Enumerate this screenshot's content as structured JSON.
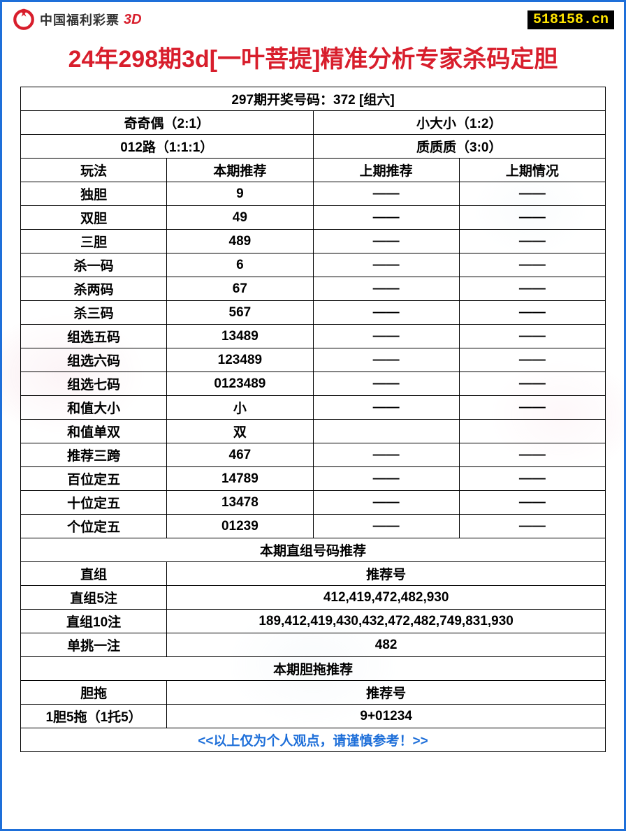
{
  "header": {
    "logo_text": "中国福利彩票",
    "logo_3d": "3D",
    "logo_color": "#d81e2c",
    "site_badge": "518158.cn"
  },
  "title": {
    "text": "24年298期3d[一叶菩提]精准分析专家杀码定胆",
    "color": "#d81e2c"
  },
  "last_draw": "297期开奖号码：372 [组六]",
  "summary": {
    "row1": {
      "left": "奇奇偶（2:1）",
      "right": "小大小（1:2）"
    },
    "row2": {
      "left": "012路（1:1:1）",
      "right": "质质质（3:0）"
    }
  },
  "columns": {
    "c1": "玩法",
    "c2": "本期推荐",
    "c3": "上期推荐",
    "c4": "上期情况"
  },
  "rows": [
    {
      "name": "独胆",
      "rec": "9",
      "prev": "——",
      "stat": "——"
    },
    {
      "name": "双胆",
      "rec": "49",
      "prev": "——",
      "stat": "——"
    },
    {
      "name": "三胆",
      "rec": "489",
      "prev": "——",
      "stat": "——"
    },
    {
      "name": "杀一码",
      "rec": "6",
      "prev": "——",
      "stat": "——"
    },
    {
      "name": "杀两码",
      "rec": "67",
      "prev": "——",
      "stat": "——"
    },
    {
      "name": "杀三码",
      "rec": "567",
      "prev": "——",
      "stat": "——"
    },
    {
      "name": "组选五码",
      "rec": "13489",
      "prev": "——",
      "stat": "——"
    },
    {
      "name": "组选六码",
      "rec": "123489",
      "prev": "——",
      "stat": "——"
    },
    {
      "name": "组选七码",
      "rec": "0123489",
      "prev": "——",
      "stat": "——"
    },
    {
      "name": "和值大小",
      "rec": "小",
      "prev": "——",
      "stat": "——"
    },
    {
      "name": "和值单双",
      "rec": "双",
      "prev": "",
      "stat": ""
    },
    {
      "name": "推荐三跨",
      "rec": "467",
      "prev": "——",
      "stat": "——"
    },
    {
      "name": "百位定五",
      "rec": "14789",
      "prev": "——",
      "stat": "——"
    },
    {
      "name": "十位定五",
      "rec": "13478",
      "prev": "——",
      "stat": "——"
    },
    {
      "name": "个位定五",
      "rec": "01239",
      "prev": "——",
      "stat": "——"
    }
  ],
  "direct_section": {
    "title": "本期直组号码推荐",
    "header_left": "直组",
    "header_right": "推荐号",
    "rows": [
      {
        "name": "直组5注",
        "val": "412,419,472,482,930"
      },
      {
        "name": "直组10注",
        "val": "189,412,419,430,432,472,482,749,831,930"
      },
      {
        "name": "单挑一注",
        "val": "482"
      }
    ]
  },
  "dantuo_section": {
    "title": "本期胆拖推荐",
    "header_left": "胆拖",
    "header_right": "推荐号",
    "rows": [
      {
        "name": "1胆5拖（1托5）",
        "val": "9+01234"
      }
    ]
  },
  "footer": "<<以上仅为个人观点，请谨慎参考！>>"
}
